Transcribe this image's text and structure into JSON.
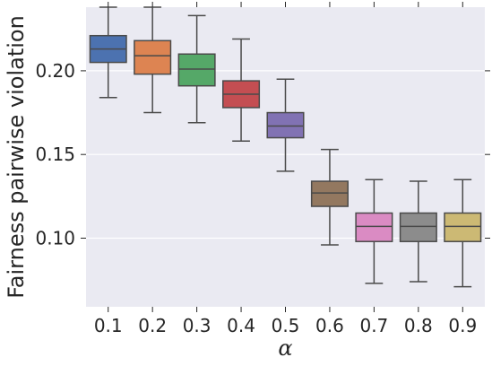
{
  "chart_data": {
    "type": "box",
    "xlabel": "α",
    "ylabel": "Fairness pairwise violation",
    "categories": [
      "0.1",
      "0.2",
      "0.3",
      "0.4",
      "0.5",
      "0.6",
      "0.7",
      "0.8",
      "0.9"
    ],
    "boxes": [
      {
        "whisker_low": 0.184,
        "q1": 0.205,
        "median": 0.213,
        "q3": 0.221,
        "whisker_high": 0.238,
        "color": "#4c72b0"
      },
      {
        "whisker_low": 0.175,
        "q1": 0.198,
        "median": 0.209,
        "q3": 0.218,
        "whisker_high": 0.238,
        "color": "#dd8452"
      },
      {
        "whisker_low": 0.169,
        "q1": 0.191,
        "median": 0.201,
        "q3": 0.21,
        "whisker_high": 0.233,
        "color": "#55a868"
      },
      {
        "whisker_low": 0.158,
        "q1": 0.178,
        "median": 0.186,
        "q3": 0.194,
        "whisker_high": 0.219,
        "color": "#c44e52"
      },
      {
        "whisker_low": 0.14,
        "q1": 0.16,
        "median": 0.167,
        "q3": 0.175,
        "whisker_high": 0.195,
        "color": "#8172b3"
      },
      {
        "whisker_low": 0.096,
        "q1": 0.119,
        "median": 0.127,
        "q3": 0.134,
        "whisker_high": 0.153,
        "color": "#937860"
      },
      {
        "whisker_low": 0.073,
        "q1": 0.098,
        "median": 0.107,
        "q3": 0.115,
        "whisker_high": 0.135,
        "color": "#da8bc3"
      },
      {
        "whisker_low": 0.074,
        "q1": 0.098,
        "median": 0.107,
        "q3": 0.115,
        "whisker_high": 0.134,
        "color": "#8c8c8c"
      },
      {
        "whisker_low": 0.071,
        "q1": 0.098,
        "median": 0.107,
        "q3": 0.115,
        "whisker_high": 0.135,
        "color": "#ccb974"
      }
    ],
    "ylim": [
      0.059,
      0.238
    ],
    "yticks": [
      0.1,
      0.15,
      0.2
    ],
    "ytick_labels": [
      "0.10",
      "0.15",
      "0.20"
    ],
    "grid": true,
    "background": "#eaeaf2",
    "gridline_color": "#ffffff",
    "line_color": "#4a4a4a"
  }
}
